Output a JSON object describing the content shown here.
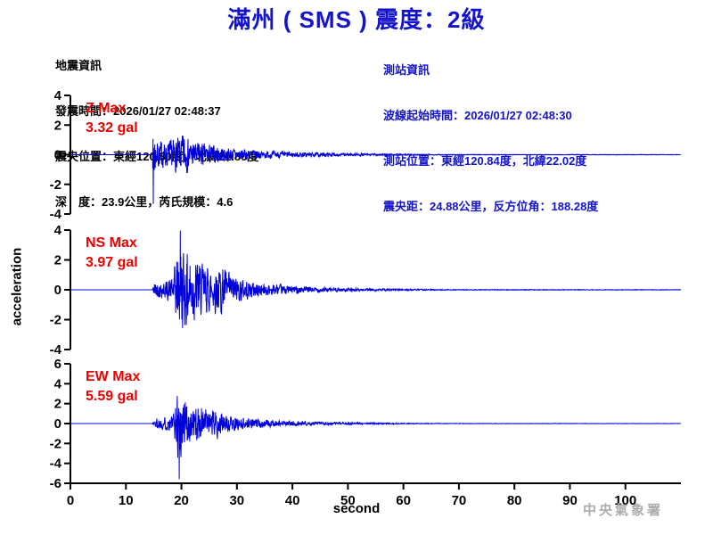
{
  "title": "滿州 ( SMS ) 震度：2級",
  "earthquake_info": {
    "heading": "地震資訊",
    "lines": [
      "發震時間：2026/01/27 02:48:37",
      "震央位置：東經120.80度，北緯21.80度",
      "深　度：23.9公里，芮氏規模：4.6"
    ]
  },
  "station_info": {
    "heading": "測站資訊",
    "lines": [
      "波線起始時間：2026/01/27 02:48:30",
      "測站位置：東經120.84度，北緯22.02度",
      "震央距：24.88公里，反方位角：188.28度"
    ]
  },
  "footer": {
    "agency": "中央氣象署"
  },
  "colors": {
    "heading_blue": "#1414cc",
    "wave_blue": "#0000dd",
    "label_red": "#ee0000",
    "axis_black": "#000000",
    "agency_gray": "#adadad"
  },
  "chart_data": {
    "type": "line",
    "title": "滿州 ( SMS ) 震度：2級",
    "xlabel": "second",
    "ylabel": "acceleration",
    "x_range": [
      0,
      110
    ],
    "x_ticks": [
      0,
      10,
      20,
      30,
      40,
      50,
      60,
      70,
      80,
      90,
      100
    ],
    "grid": false,
    "series": [
      {
        "name": "Z",
        "max_label": "Z Max",
        "max_value_label": "3.32 gal",
        "max_gal": 3.32,
        "ylim": [
          -4,
          4
        ],
        "y_ticks": [
          4,
          2,
          0,
          -2,
          -4
        ],
        "onset_s": 14.8,
        "peak_s": 14.95,
        "peak_sign": -1,
        "seed": 7,
        "envelope_gal_vs_s": [
          [
            14.8,
            0.08
          ],
          [
            14.95,
            3.32
          ],
          [
            15.35,
            1.15
          ],
          [
            17.5,
            0.95
          ],
          [
            19.6,
            1.35
          ],
          [
            20.5,
            1.55
          ],
          [
            21.6,
            1.05
          ],
          [
            24,
            0.85
          ],
          [
            27,
            0.6
          ],
          [
            30,
            0.45
          ],
          [
            34,
            0.32
          ],
          [
            38,
            0.24
          ],
          [
            43,
            0.17
          ],
          [
            48,
            0.12
          ],
          [
            54,
            0.08
          ],
          [
            60,
            0.05
          ],
          [
            66,
            0.035
          ],
          [
            72,
            0.022
          ],
          [
            110,
            0.016
          ]
        ]
      },
      {
        "name": "NS",
        "max_label": "NS Max",
        "max_value_label": "3.97 gal",
        "max_gal": 3.97,
        "ylim": [
          -4,
          4
        ],
        "y_ticks": [
          4,
          2,
          0,
          -2,
          -4
        ],
        "onset_s": 14.8,
        "peak_s": 19.8,
        "peak_sign": 1,
        "seed": 42,
        "envelope_gal_vs_s": [
          [
            14.8,
            0.05
          ],
          [
            15.05,
            0.65
          ],
          [
            17,
            0.7
          ],
          [
            18.4,
            1.1
          ],
          [
            19.2,
            2.9
          ],
          [
            19.8,
            3.97
          ],
          [
            20.6,
            3.1
          ],
          [
            21.6,
            3.2
          ],
          [
            22.6,
            2.5
          ],
          [
            24,
            2.1
          ],
          [
            25.5,
            1.7
          ],
          [
            26.8,
            2.2
          ],
          [
            28.5,
            1.4
          ],
          [
            30,
            1.05
          ],
          [
            32,
            0.75
          ],
          [
            35,
            0.55
          ],
          [
            38,
            0.4
          ],
          [
            42,
            0.28
          ],
          [
            46,
            0.2
          ],
          [
            50,
            0.14
          ],
          [
            55,
            0.1
          ],
          [
            60,
            0.07
          ],
          [
            66,
            0.045
          ],
          [
            72,
            0.03
          ],
          [
            110,
            0.02
          ]
        ]
      },
      {
        "name": "EW",
        "max_label": "EW Max",
        "max_value_label": "5.59 gal",
        "max_gal": 5.59,
        "ylim": [
          -6,
          6
        ],
        "y_ticks": [
          6,
          4,
          2,
          0,
          -2,
          -4,
          -6
        ],
        "onset_s": 14.8,
        "peak_s": 19.6,
        "peak_sign": -1,
        "seed": 1337,
        "envelope_gal_vs_s": [
          [
            14.8,
            0.05
          ],
          [
            15.05,
            0.75
          ],
          [
            17,
            0.8
          ],
          [
            18.6,
            1.25
          ],
          [
            19.15,
            3.4
          ],
          [
            19.6,
            5.59
          ],
          [
            20.4,
            3.9
          ],
          [
            21.2,
            2.6
          ],
          [
            22.2,
            2.0
          ],
          [
            23.5,
            2.3
          ],
          [
            25,
            1.5
          ],
          [
            26.5,
            1.8
          ],
          [
            28,
            1.15
          ],
          [
            30,
            0.85
          ],
          [
            32.5,
            0.65
          ],
          [
            35,
            0.48
          ],
          [
            38,
            0.36
          ],
          [
            42,
            0.26
          ],
          [
            46,
            0.19
          ],
          [
            50,
            0.13
          ],
          [
            56,
            0.085
          ],
          [
            62,
            0.05
          ],
          [
            70,
            0.03
          ],
          [
            110,
            0.018
          ]
        ]
      }
    ]
  }
}
